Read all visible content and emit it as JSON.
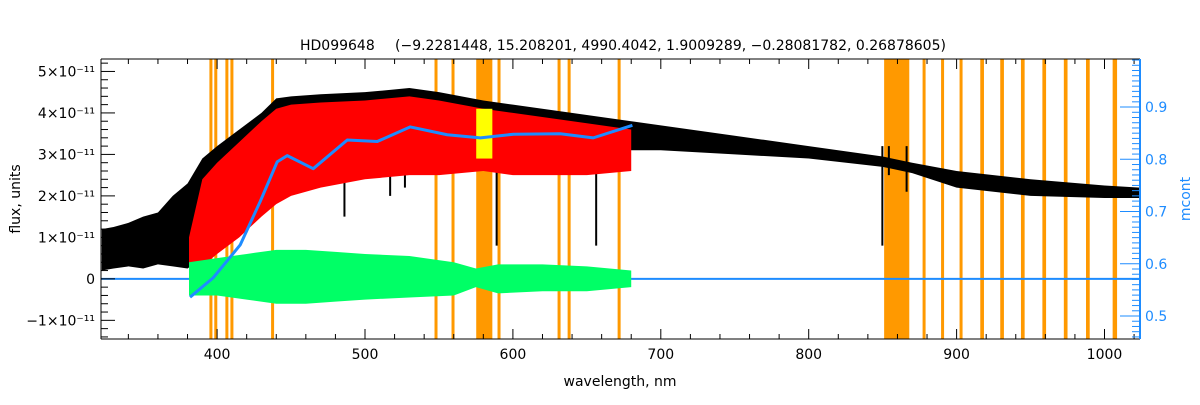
{
  "chart_data": {
    "type": "line",
    "title_star": "HD099648",
    "title_params": "(−9.2281448, 15.208201, 4990.4042, 1.9009289, −0.28081782, 0.26878605)",
    "xlabel": "wavelength, nm",
    "ylabel": "flux, units",
    "y2label": "mcont",
    "xlim": [
      321.5,
      1024
    ],
    "ylim": [
      -1.45e-11,
      5.3e-11
    ],
    "y2lim": [
      0.456,
      0.992
    ],
    "x_ticks": [
      400,
      500,
      600,
      700,
      800,
      900,
      1000
    ],
    "y_ticks": [
      {
        "value": -1e-11,
        "label": "−1×10⁻¹¹"
      },
      {
        "value": 0,
        "label": "0"
      },
      {
        "value": 1e-11,
        "label": "1×10⁻¹¹"
      },
      {
        "value": 2e-11,
        "label": "2×10⁻¹¹"
      },
      {
        "value": 3e-11,
        "label": "3×10⁻¹¹"
      },
      {
        "value": 4e-11,
        "label": "4×10⁻¹¹"
      },
      {
        "value": 5e-11,
        "label": "5×10⁻¹¹"
      }
    ],
    "y2_ticks": [
      "0.5",
      "0.6",
      "0.7",
      "0.8",
      "0.9"
    ],
    "colors": {
      "observed": "#000000",
      "model": "#ff0000",
      "residual": "#00ff66",
      "mcont": "#1e8cff",
      "mask": "#ff9900",
      "masked_model": "#ffff00"
    },
    "masked_bands_nm": [
      [
        394.8,
        395.8
      ],
      [
        398.1,
        399.1
      ],
      [
        405.6,
        406.6
      ],
      [
        409,
        410
      ],
      [
        436.5,
        437.9
      ],
      [
        547,
        548
      ],
      [
        558.5,
        559.5
      ],
      [
        575.2,
        586.1
      ],
      [
        589.6,
        590.6
      ],
      [
        630.2,
        631.2
      ],
      [
        637,
        638
      ],
      [
        670.8,
        671.8
      ],
      [
        851,
        868
      ],
      [
        877,
        879
      ],
      [
        889.5,
        891.5
      ],
      [
        902,
        904
      ],
      [
        916,
        918.5
      ],
      [
        929.5,
        932
      ],
      [
        943.5,
        946
      ],
      [
        958,
        960.5
      ],
      [
        972.5,
        975
      ],
      [
        987.5,
        990
      ],
      [
        1005.5,
        1008.5
      ]
    ],
    "series": [
      {
        "name": "observed",
        "unit": 1e-11,
        "x": [
          322,
          330,
          340,
          350,
          360,
          370,
          380,
          390,
          400,
          415,
          430,
          440,
          450,
          470,
          500,
          530,
          550,
          580,
          600,
          650,
          680,
          700,
          750,
          800,
          850,
          870,
          900,
          950,
          1000,
          1024
        ],
        "upper": [
          1.2,
          1.25,
          1.35,
          1.5,
          1.6,
          2.0,
          2.3,
          2.9,
          3.2,
          3.6,
          4.0,
          4.35,
          4.4,
          4.45,
          4.5,
          4.6,
          4.5,
          4.3,
          4.2,
          3.95,
          3.8,
          3.7,
          3.45,
          3.2,
          2.95,
          2.8,
          2.6,
          2.4,
          2.25,
          2.2
        ],
        "lower": [
          0.2,
          0.25,
          0.3,
          0.25,
          0.35,
          0.3,
          0.25,
          0.5,
          0.9,
          1.4,
          1.9,
          2.2,
          2.5,
          2.7,
          3.0,
          3.0,
          2.9,
          3.0,
          3.1,
          3.0,
          3.1,
          3.1,
          3.0,
          2.9,
          2.7,
          2.55,
          2.2,
          2.0,
          1.95,
          1.95
        ],
        "deep_lines": [
          [
            486.1,
            1.5
          ],
          [
            517,
            2.0
          ],
          [
            527,
            2.2
          ],
          [
            589,
            0.8
          ],
          [
            656.3,
            0.8
          ],
          [
            849.8,
            0.8
          ],
          [
            866.2,
            2.1
          ],
          [
            854.2,
            2.5
          ]
        ]
      },
      {
        "name": "model",
        "unit": 1e-11,
        "x": [
          381,
          390,
          400,
          415,
          430,
          440,
          450,
          470,
          500,
          530,
          550,
          580,
          600,
          650,
          680
        ],
        "upper": [
          1.0,
          2.4,
          2.8,
          3.3,
          3.8,
          4.1,
          4.2,
          4.25,
          4.3,
          4.4,
          4.3,
          4.1,
          4.0,
          3.75,
          3.6
        ],
        "lower": [
          0.2,
          0.3,
          0.6,
          1.0,
          1.5,
          1.8,
          2.0,
          2.2,
          2.4,
          2.5,
          2.5,
          2.6,
          2.5,
          2.5,
          2.6
        ]
      },
      {
        "name": "residual",
        "unit": 1e-11,
        "x": [
          381,
          400,
          420,
          440,
          460,
          480,
          500,
          530,
          560,
          575,
          590,
          620,
          650,
          680
        ],
        "upper": [
          0.4,
          0.5,
          0.6,
          0.7,
          0.7,
          0.65,
          0.6,
          0.55,
          0.4,
          0.25,
          0.35,
          0.35,
          0.3,
          0.2
        ],
        "lower": [
          -0.4,
          -0.4,
          -0.5,
          -0.6,
          -0.6,
          -0.55,
          -0.5,
          -0.45,
          -0.4,
          -0.2,
          -0.35,
          -0.3,
          -0.3,
          -0.2
        ]
      },
      {
        "name": "mcont",
        "axis": "right",
        "x": [
          381.7,
          397.3,
          415.6,
          429.1,
          440.6,
          447.4,
          465,
          488,
          508.3,
          530.6,
          555.6,
          578,
          600.3,
          632,
          654.3,
          680.8
        ],
        "y": [
          0.536,
          0.573,
          0.636,
          0.719,
          0.795,
          0.807,
          0.782,
          0.837,
          0.834,
          0.862,
          0.847,
          0.841,
          0.848,
          0.849,
          0.841,
          0.865
        ]
      },
      {
        "name": "zero-line",
        "x": [
          321.5,
          1024
        ],
        "y": [
          0,
          0
        ]
      }
    ]
  }
}
